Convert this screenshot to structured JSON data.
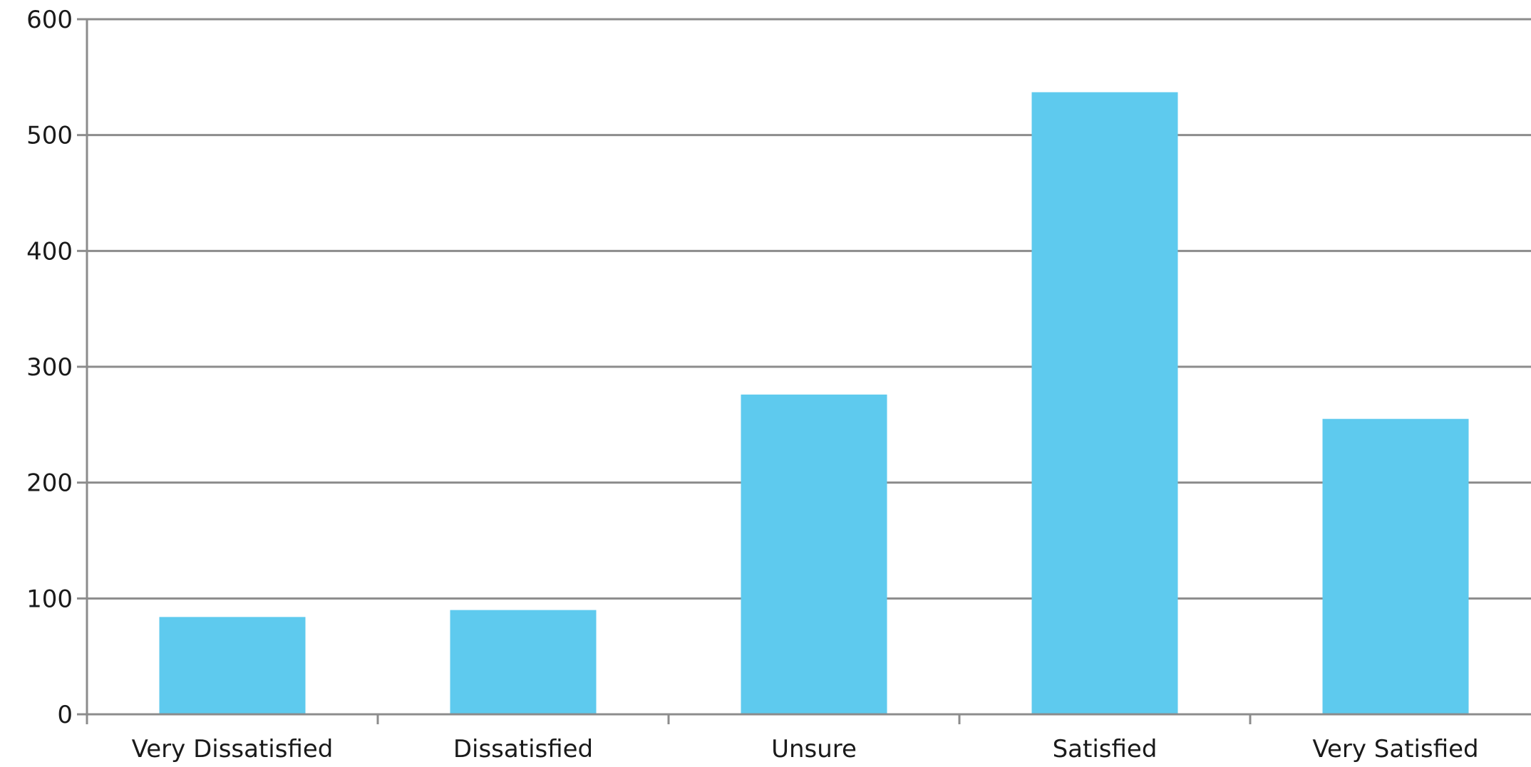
{
  "chart_data": {
    "type": "bar",
    "title": "",
    "xlabel": "",
    "ylabel": "",
    "categories": [
      "Very Dissatisfied",
      "Dissatisfied",
      "Unsure",
      "Satisfied",
      "Very Satisfied"
    ],
    "values": [
      84,
      90,
      276,
      537,
      255
    ],
    "ylim": [
      0,
      600
    ],
    "yticks": [
      0,
      100,
      200,
      300,
      400,
      500,
      600
    ],
    "grid": true,
    "legend": "none",
    "colors": {
      "bar": "#5ecaee",
      "grid": "#8c8c8c",
      "axis": "#8c8c8c",
      "text": "#1a1a1a"
    }
  }
}
